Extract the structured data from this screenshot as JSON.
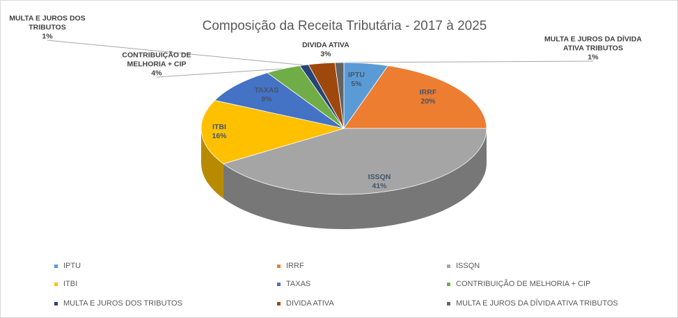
{
  "chart_data": {
    "type": "pie",
    "title": "Composição da Receita Tributária - 2017 à 2025",
    "categories": [
      "IPTU",
      "IRRF",
      "ISSQN",
      "ITBI",
      "TAXAS",
      "CONTRIBUIÇÃO DE MELHORIA + CIP",
      "MULTA E JUROS DOS TRIBUTOS",
      "DIVIDA ATIVA",
      "MULTA E JUROS DA DÍVIDA ATIVA TRIBUTOS"
    ],
    "values": [
      5,
      20,
      41,
      16,
      9,
      4,
      1,
      3,
      1
    ],
    "value_labels": [
      "5%",
      "20%",
      "41%",
      "16%",
      "9%",
      "4%",
      "1%",
      "3%",
      "1%"
    ],
    "colors": [
      "#5b9bd5",
      "#ed7d31",
      "#a5a5a5",
      "#ffc000",
      "#4472c4",
      "#70ad47",
      "#264478",
      "#9e480e",
      "#636363"
    ],
    "legend": "bottom"
  }
}
